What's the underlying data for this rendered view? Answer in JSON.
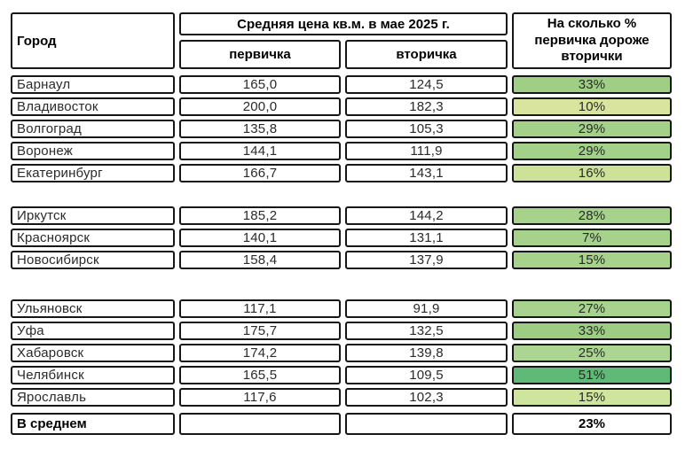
{
  "table": {
    "header": {
      "city": "Город",
      "price_group": "Средняя цена кв.м. в мае 2025 г.",
      "primary": "первичка",
      "secondary": "вторичка",
      "diff": "На сколько % первичка дороже вторички"
    },
    "groups": [
      {
        "rows": [
          {
            "city": "Барнаул",
            "primary": "165,0",
            "secondary": "124,5",
            "diff": "33%",
            "color": "#9fcf85"
          },
          {
            "city": "Владивосток",
            "primary": "200,0",
            "secondary": "182,3",
            "diff": "10%",
            "color": "#d9e59f"
          },
          {
            "city": "Волгоград",
            "primary": "135,8",
            "secondary": "105,3",
            "diff": "29%",
            "color": "#a3d189"
          },
          {
            "city": "Воронеж",
            "primary": "144,1",
            "secondary": "111,9",
            "diff": "29%",
            "color": "#a3d189"
          },
          {
            "city": "Екатеринбург",
            "primary": "166,7",
            "secondary": "143,1",
            "diff": "16%",
            "color": "#cde198"
          }
        ]
      },
      {
        "rows": [
          {
            "city": "Иркутск",
            "primary": "185,2",
            "secondary": "144,2",
            "diff": "28%",
            "color": "#a6d28c"
          },
          {
            "city": "Красноярск",
            "primary": "140,1",
            "secondary": "131,1",
            "diff": "7%",
            "color": "#a6d28c"
          },
          {
            "city": "Новосибирск",
            "primary": "158,4",
            "secondary": "137,9",
            "diff": "15%",
            "color": "#a6d28c"
          }
        ]
      },
      {
        "rows": [
          {
            "city": "Ульяновск",
            "primary": "117,1",
            "secondary": "91,9",
            "diff": "27%",
            "color": "#a8d38e"
          },
          {
            "city": "Уфа",
            "primary": "175,7",
            "secondary": "132,5",
            "diff": "33%",
            "color": "#9ccd82"
          },
          {
            "city": "Хабаровск",
            "primary": "174,2",
            "secondary": "139,8",
            "diff": "25%",
            "color": "#abd591"
          },
          {
            "city": "Челябинск",
            "primary": "165,5",
            "secondary": "109,5",
            "diff": "51%",
            "color": "#5fba77"
          },
          {
            "city": "Ярославль",
            "primary": "117,6",
            "secondary": "102,3",
            "diff": "15%",
            "color": "#cfe49c"
          }
        ]
      }
    ],
    "footer": {
      "city": "В среднем",
      "primary": "",
      "secondary": "",
      "diff": "23%"
    }
  },
  "colors": {
    "background": "#ffffff",
    "border": "#161616",
    "text": "#2a2a2a",
    "green_medium": "#a6d28c",
    "green_light": "#d9e59f",
    "green_dark": "#5fba77"
  },
  "chart_data": {
    "type": "table",
    "title": "Средняя цена кв.м. в мае 2025 г.",
    "columns": [
      "Город",
      "первичка",
      "вторичка",
      "На сколько % первичка дороже вторички"
    ],
    "rows": [
      [
        "Барнаул",
        165.0,
        124.5,
        33
      ],
      [
        "Владивосток",
        200.0,
        182.3,
        10
      ],
      [
        "Волгоград",
        135.8,
        105.3,
        29
      ],
      [
        "Воронеж",
        144.1,
        111.9,
        29
      ],
      [
        "Екатеринбург",
        166.7,
        143.1,
        16
      ],
      [
        "Иркутск",
        185.2,
        144.2,
        28
      ],
      [
        "Красноярск",
        140.1,
        131.1,
        7
      ],
      [
        "Новосибирск",
        158.4,
        137.9,
        15
      ],
      [
        "Ульяновск",
        117.1,
        91.9,
        27
      ],
      [
        "Уфа",
        175.7,
        132.5,
        33
      ],
      [
        "Хабаровск",
        174.2,
        139.8,
        25
      ],
      [
        "Челябинск",
        165.5,
        109.5,
        51
      ],
      [
        "Ярославль",
        117.6,
        102.3,
        15
      ],
      [
        "В среднем",
        null,
        null,
        23
      ]
    ],
    "notes": "Зелёная заливка в последней колонке кодирует величину разницы (светлее = меньше, темнее = больше)"
  }
}
